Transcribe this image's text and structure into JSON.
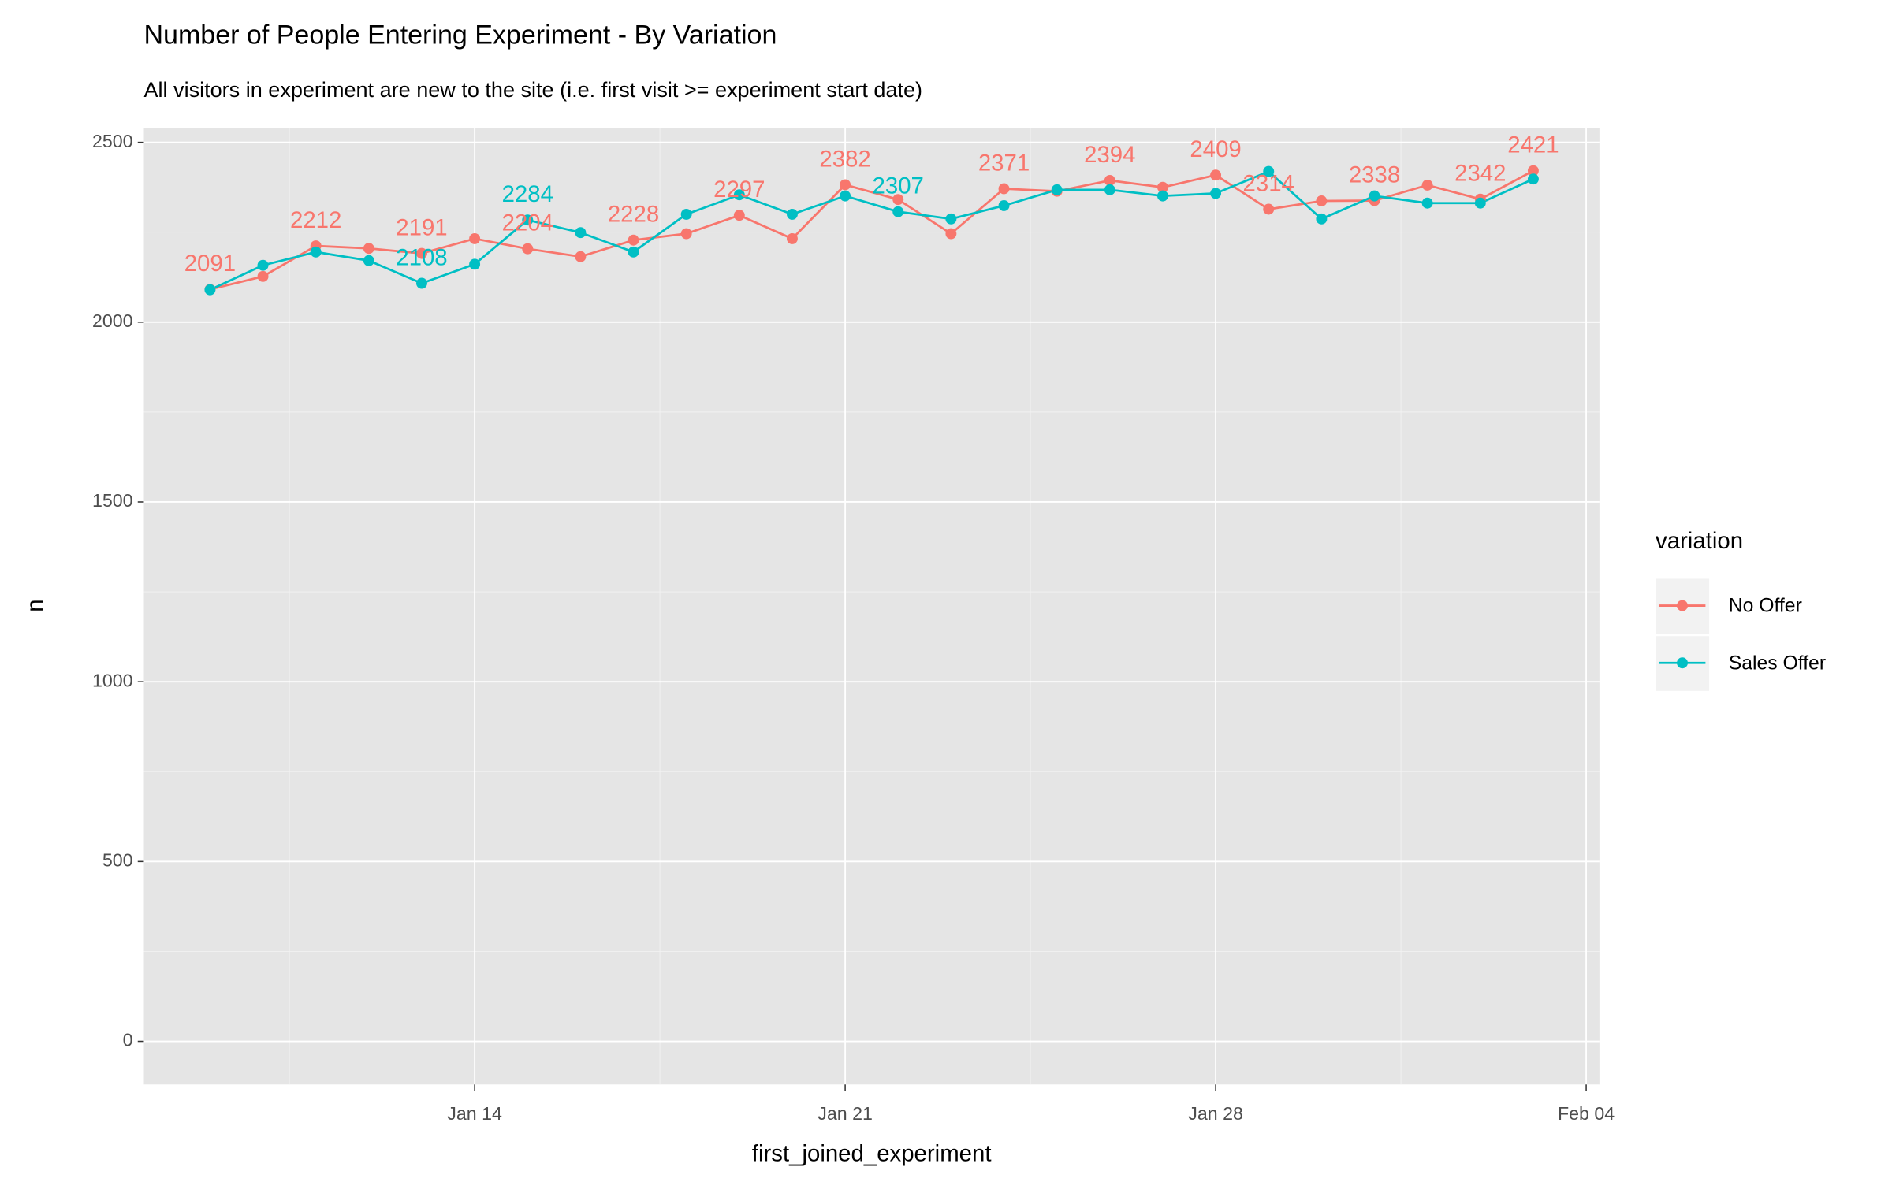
{
  "chart_data": {
    "type": "line",
    "title": "Number of People Entering Experiment - By Variation",
    "subtitle": "All visitors in experiment are new to the site (i.e. first visit >= experiment start date)",
    "x_label": "first_joined_experiment",
    "y_label": "n",
    "legend_title": "variation",
    "legend_position": "right",
    "grid": true,
    "x": [
      "Jan 09",
      "Jan 10",
      "Jan 11",
      "Jan 12",
      "Jan 13",
      "Jan 14",
      "Jan 15",
      "Jan 16",
      "Jan 17",
      "Jan 18",
      "Jan 19",
      "Jan 20",
      "Jan 21",
      "Jan 22",
      "Jan 23",
      "Jan 24",
      "Jan 25",
      "Jan 26",
      "Jan 27",
      "Jan 28",
      "Jan 29",
      "Jan 30",
      "Jan 31",
      "Feb 01",
      "Feb 02",
      "Feb 03"
    ],
    "xlim": [
      "Jan 09",
      "Feb 03"
    ],
    "xticks": [
      "Jan 14",
      "Jan 21",
      "Jan 28",
      "Feb 04"
    ],
    "ylim": [
      -120,
      2540
    ],
    "yticks": [
      0,
      500,
      1000,
      1500,
      2000,
      2500
    ],
    "series": [
      {
        "name": "No Offer",
        "color": "#f8766d",
        "values": [
          2091,
          2127,
          2212,
          2205,
          2191,
          2232,
          2204,
          2182,
          2228,
          2246,
          2297,
          2232,
          2382,
          2341,
          2246,
          2371,
          2364,
          2394,
          2375,
          2409,
          2314,
          2337,
          2338,
          2381,
          2342,
          2421
        ],
        "value_labels": [
          "2091",
          null,
          "2212",
          null,
          "2191",
          null,
          "2204",
          null,
          "2228",
          null,
          "2297",
          null,
          "2382",
          null,
          null,
          "2371",
          null,
          "2394",
          null,
          "2409",
          "2314",
          null,
          "2338",
          null,
          "2342",
          "2421"
        ]
      },
      {
        "name": "Sales Offer",
        "color": "#00bfc4",
        "values": [
          2090,
          2158,
          2195,
          2171,
          2108,
          2161,
          2284,
          2249,
          2195,
          2300,
          2354,
          2300,
          2351,
          2307,
          2287,
          2324,
          2368,
          2368,
          2351,
          2358,
          2419,
          2287,
          2351,
          2331,
          2331,
          2398
        ],
        "value_labels": [
          null,
          null,
          null,
          null,
          "2108",
          null,
          "2284",
          null,
          null,
          null,
          null,
          null,
          null,
          "2307",
          null,
          null,
          null,
          null,
          null,
          null,
          null,
          null,
          null,
          null,
          null,
          null
        ]
      }
    ]
  }
}
